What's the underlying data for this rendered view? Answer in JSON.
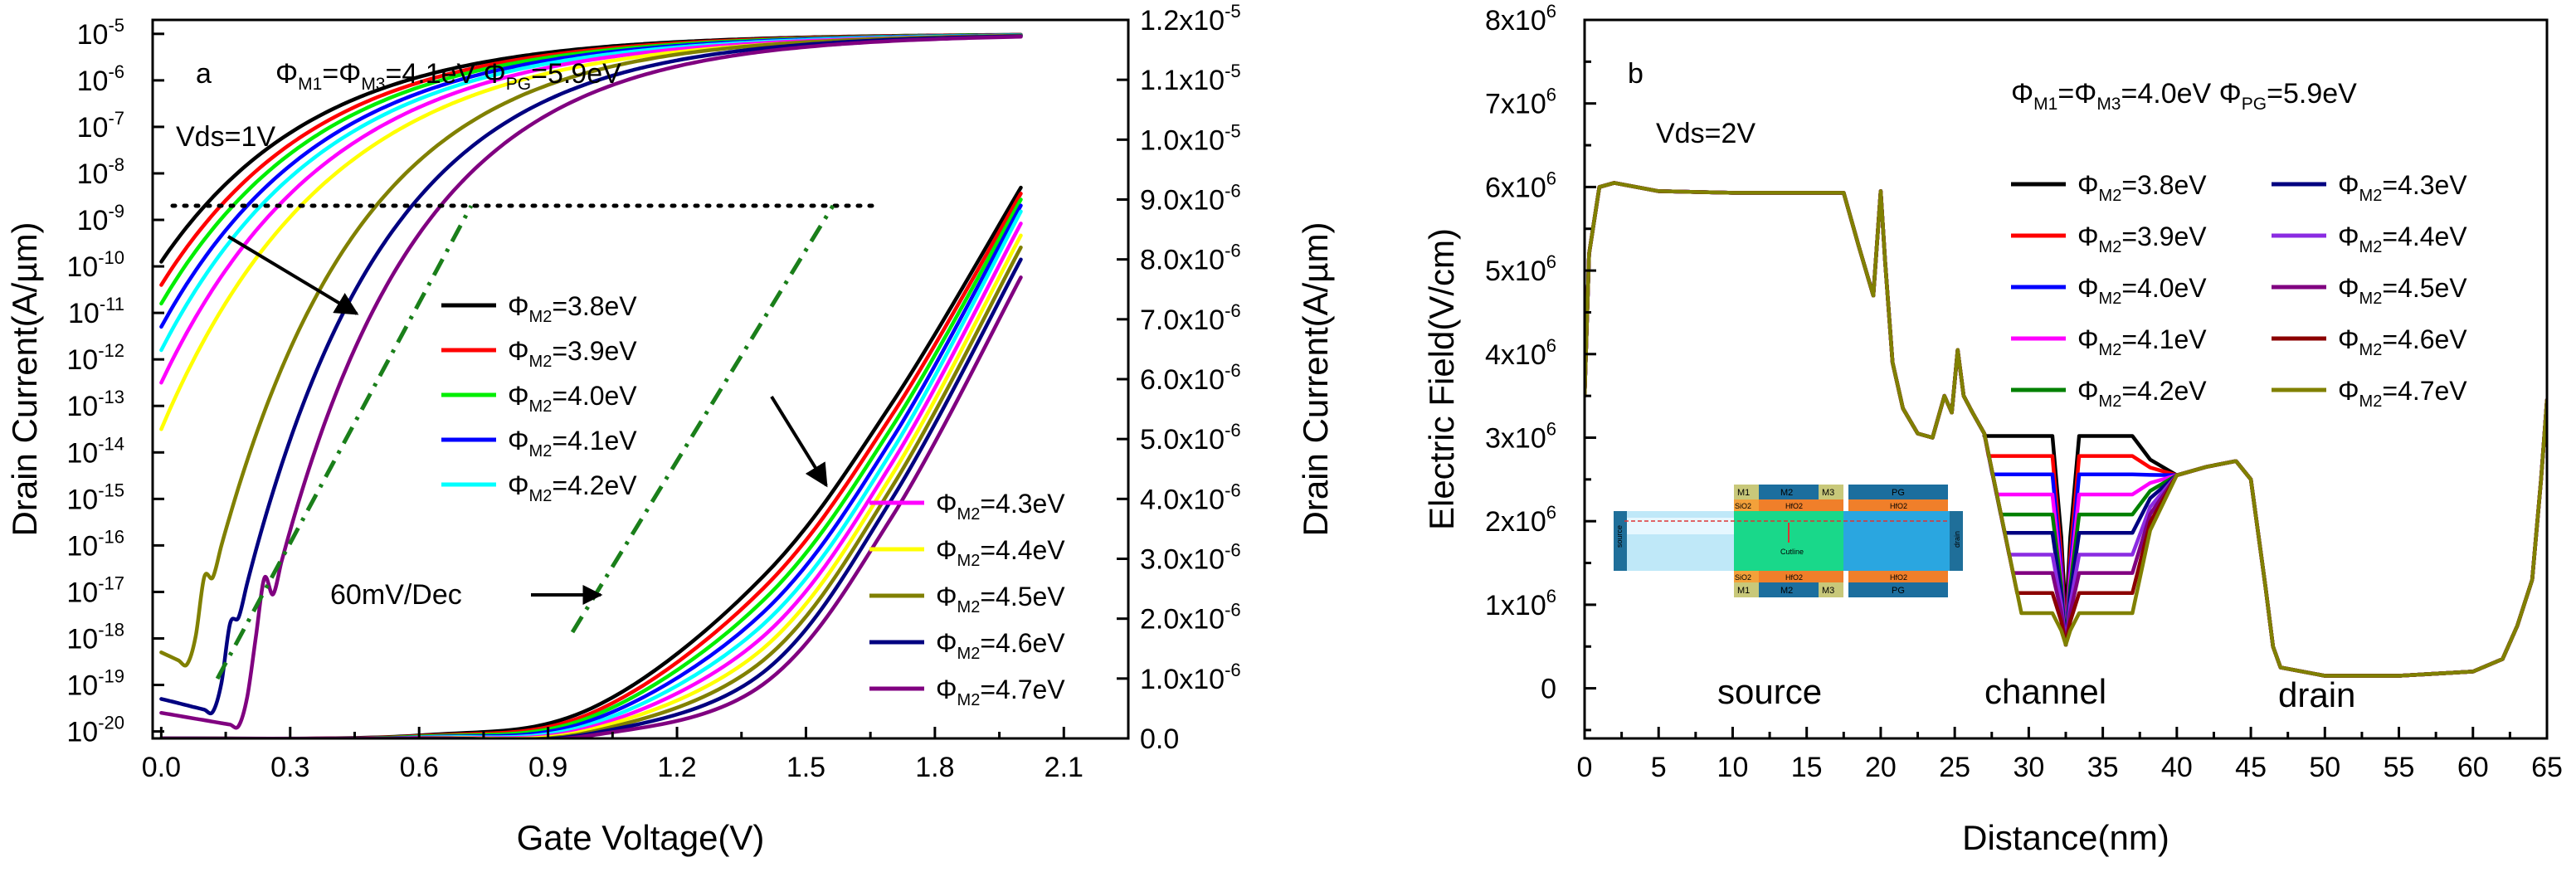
{
  "chart_data": [
    {
      "type": "line",
      "panel": "a",
      "title": "",
      "xlabel": "Gate Voltage(V)",
      "ylabel": "Drain Current(A/µm)",
      "y2label": "Drain Current(A/µm)",
      "xlim": [
        -0.02,
        2.25
      ],
      "xticks": [
        0.0,
        0.3,
        0.6,
        0.9,
        1.2,
        1.5,
        1.8,
        2.1
      ],
      "xticklabels": [
        "0.0",
        "0.3",
        "0.6",
        "0.9",
        "1.2",
        "1.5",
        "1.8",
        "2.1"
      ],
      "ylim_log10": [
        -20.15,
        -4.7
      ],
      "yticks_log10": [
        -20,
        -19,
        -18,
        -17,
        -16,
        -15,
        -14,
        -13,
        -12,
        -11,
        -10,
        -9,
        -8,
        -7,
        -6,
        -5
      ],
      "yticklabels": [
        {
          "base": "10",
          "exp": "-20"
        },
        {
          "base": "10",
          "exp": "-19"
        },
        {
          "base": "10",
          "exp": "-18"
        },
        {
          "base": "10",
          "exp": "-17"
        },
        {
          "base": "10",
          "exp": "-16"
        },
        {
          "base": "10",
          "exp": "-15"
        },
        {
          "base": "10",
          "exp": "-14"
        },
        {
          "base": "10",
          "exp": "-13"
        },
        {
          "base": "10",
          "exp": "-12"
        },
        {
          "base": "10",
          "exp": "-11"
        },
        {
          "base": "10",
          "exp": "-10"
        },
        {
          "base": "10",
          "exp": "-9"
        },
        {
          "base": "10",
          "exp": "-8"
        },
        {
          "base": "10",
          "exp": "-7"
        },
        {
          "base": "10",
          "exp": "-6"
        },
        {
          "base": "10",
          "exp": "-5"
        }
      ],
      "y2lim": [
        0,
        1.2e-05
      ],
      "y2ticks": [
        0,
        1e-06,
        2e-06,
        3e-06,
        4e-06,
        5e-06,
        6e-06,
        7e-06,
        8e-06,
        9e-06,
        1e-05,
        1.1e-05,
        1.2e-05
      ],
      "y2ticklabels": [
        {
          "base": "0.0",
          "exp": ""
        },
        {
          "base": "1.0x10",
          "exp": "-6"
        },
        {
          "base": "2.0x10",
          "exp": "-6"
        },
        {
          "base": "3.0x10",
          "exp": "-6"
        },
        {
          "base": "4.0x10",
          "exp": "-6"
        },
        {
          "base": "5.0x10",
          "exp": "-6"
        },
        {
          "base": "6.0x10",
          "exp": "-6"
        },
        {
          "base": "7.0x10",
          "exp": "-6"
        },
        {
          "base": "8.0x10",
          "exp": "-6"
        },
        {
          "base": "9.0x10",
          "exp": "-6"
        },
        {
          "base": "1.0x10",
          "exp": "-5"
        },
        {
          "base": "1.1x10",
          "exp": "-5"
        },
        {
          "base": "1.2x10",
          "exp": "-5"
        }
      ],
      "annotations": {
        "panel_letter": "a",
        "work_function_main": "Φ",
        "work_function_sub1": "M1",
        "work_function_mid": "=Φ",
        "work_function_sub2": "M3",
        "work_function_val": "=4.1eV  Φ",
        "work_function_sub3": "PG",
        "work_function_end": "=5.9eV",
        "bias": "Vds=1V",
        "slope_label": "60mV/Dec",
        "threshold_current_log10": -8
      },
      "series": [
        {
          "name_sym": "Φ",
          "name_sub": "M2",
          "name_val": "=3.8eV",
          "color": "#000000",
          "phi": 3.8,
          "log_x": [
            0.0,
            2.0
          ],
          "log_y": [
            -9.9,
            -5.0
          ],
          "lin_x": [
            0.0,
            0.6,
            1.0,
            1.4,
            1.7,
            2.0
          ],
          "lin_y": [
            0.0,
            5e-08,
            5e-07,
            2.7e-06,
            5.6e-06,
            9.2e-06
          ]
        },
        {
          "name_sym": "Φ",
          "name_sub": "M2",
          "name_val": "=3.9eV",
          "color": "#ff0000",
          "phi": 3.9,
          "log_x": [
            0.0,
            2.0
          ],
          "log_y": [
            -10.4,
            -5.0
          ],
          "lin_x": [
            0.0,
            0.6,
            1.0,
            1.4,
            1.7,
            2.0
          ],
          "lin_y": [
            0.0,
            4e-08,
            4.2e-07,
            2.5e-06,
            5.4e-06,
            9.1e-06
          ]
        },
        {
          "name_sym": "Φ",
          "name_sub": "M2",
          "name_val": "=4.0eV",
          "color": "#00ee00",
          "phi": 4.0,
          "log_x": [
            0.0,
            2.0
          ],
          "log_y": [
            -10.8,
            -5.0
          ],
          "lin_x": [
            0.0,
            0.6,
            1.0,
            1.4,
            1.7,
            2.0
          ],
          "lin_y": [
            0.0,
            3e-08,
            3.6e-07,
            2.3e-06,
            5.2e-06,
            9e-06
          ]
        },
        {
          "name_sym": "Φ",
          "name_sub": "M2",
          "name_val": "=4.1eV",
          "color": "#0000ff",
          "phi": 4.1,
          "log_x": [
            0.0,
            2.0
          ],
          "log_y": [
            -11.3,
            -5.0
          ],
          "lin_x": [
            0.0,
            0.6,
            1.0,
            1.4,
            1.7,
            2.0
          ],
          "lin_y": [
            0.0,
            2e-08,
            3e-07,
            2.1e-06,
            5e-06,
            8.9e-06
          ]
        },
        {
          "name_sym": "Φ",
          "name_sub": "M2",
          "name_val": "=4.2eV",
          "color": "#00ffff",
          "phi": 4.2,
          "log_x": [
            0.0,
            2.0
          ],
          "log_y": [
            -11.8,
            -5.0
          ],
          "lin_x": [
            0.0,
            0.6,
            1.0,
            1.4,
            1.7,
            2.0
          ],
          "lin_y": [
            0.0,
            1.5e-08,
            2.4e-07,
            1.9e-06,
            4.8e-06,
            8.8e-06
          ]
        },
        {
          "name_sym": "Φ",
          "name_sub": "M2",
          "name_val": "=4.3eV",
          "color": "#ff00ff",
          "phi": 4.3,
          "log_x": [
            0.0,
            2.0
          ],
          "log_y": [
            -12.5,
            -5.0
          ],
          "lin_x": [
            0.0,
            0.6,
            1.0,
            1.4,
            1.7,
            2.0
          ],
          "lin_y": [
            0.0,
            1e-08,
            1.9e-07,
            1.7e-06,
            4.6e-06,
            8.6e-06
          ]
        },
        {
          "name_sym": "Φ",
          "name_sub": "M2",
          "name_val": "=4.4eV",
          "color": "#ffff00",
          "phi": 4.4,
          "log_x": [
            0.0,
            2.0
          ],
          "log_y": [
            -13.5,
            -5.0
          ],
          "lin_x": [
            0.0,
            0.6,
            1.0,
            1.4,
            1.7,
            2.0
          ],
          "lin_y": [
            0.0,
            6e-09,
            1.5e-07,
            1.5e-06,
            4.4e-06,
            8.4e-06
          ]
        },
        {
          "name_sym": "Φ",
          "name_sub": "M2",
          "name_val": "=4.5eV",
          "color": "#808000",
          "phi": 4.5,
          "log_x": [
            0.0,
            2.0
          ],
          "log_y": [
            -18.3,
            -5.0
          ],
          "lin_x": [
            0.0,
            0.6,
            1.0,
            1.4,
            1.7,
            2.0
          ],
          "lin_y": [
            0.0,
            4e-09,
            1.1e-07,
            1.3e-06,
            4.2e-06,
            8.2e-06
          ]
        },
        {
          "name_sym": "Φ",
          "name_sub": "M2",
          "name_val": "=4.6eV",
          "color": "#000080",
          "phi": 4.6,
          "log_x": [
            0.0,
            2.0
          ],
          "log_y": [
            -19.3,
            -5.0
          ],
          "lin_x": [
            0.0,
            0.6,
            1.0,
            1.4,
            1.7,
            2.0
          ],
          "lin_y": [
            0.0,
            2e-09,
            8e-08,
            1.1e-06,
            4e-06,
            8e-06
          ]
        },
        {
          "name_sym": "Φ",
          "name_sub": "M2",
          "name_val": "=4.7eV",
          "color": "#800080",
          "phi": 4.7,
          "log_x": [
            0.0,
            2.0
          ],
          "log_y": [
            -19.6,
            -5.0
          ],
          "lin_x": [
            0.0,
            0.6,
            1.0,
            1.4,
            1.7,
            2.0
          ],
          "lin_y": [
            0.0,
            1e-09,
            5e-08,
            9e-07,
            3.7e-06,
            7.7e-06
          ]
        }
      ]
    },
    {
      "type": "line",
      "panel": "b",
      "title": "",
      "xlabel": "Distance(nm)",
      "ylabel": "Electric Field(V/cm)",
      "xlim": [
        0,
        65
      ],
      "xticks": [
        0,
        5,
        10,
        15,
        20,
        25,
        30,
        35,
        40,
        45,
        50,
        55,
        60,
        65
      ],
      "xticklabels": [
        "0",
        "5",
        "10",
        "15",
        "20",
        "25",
        "30",
        "35",
        "40",
        "45",
        "50",
        "55",
        "60",
        "65"
      ],
      "ylim": [
        -600000,
        8000000
      ],
      "yticks": [
        0,
        1000000,
        2000000,
        3000000,
        4000000,
        5000000,
        6000000,
        7000000,
        8000000
      ],
      "yticklabels": [
        {
          "base": "0",
          "exp": ""
        },
        {
          "base": "1x10",
          "exp": "6"
        },
        {
          "base": "2x10",
          "exp": "6"
        },
        {
          "base": "3x10",
          "exp": "6"
        },
        {
          "base": "4x10",
          "exp": "6"
        },
        {
          "base": "5x10",
          "exp": "6"
        },
        {
          "base": "6x10",
          "exp": "6"
        },
        {
          "base": "7x10",
          "exp": "6"
        },
        {
          "base": "8x10",
          "exp": "6"
        }
      ],
      "annotations": {
        "panel_letter": "b",
        "work_function_main": "Φ",
        "work_function_sub1": "M1",
        "work_function_mid": "=Φ",
        "work_function_sub2": "M3",
        "work_function_val": "=4.0eV  Φ",
        "work_function_sub3": "PG",
        "work_function_end": "=5.9eV",
        "bias": "Vds=2V",
        "region_source": "source",
        "region_channel": "channel",
        "region_drain": "drain"
      },
      "inset_labels": {
        "m1": "M1",
        "m2": "M2",
        "m3": "M3",
        "pg": "PG",
        "sio2": "SiO2",
        "hfo2": "HfO2",
        "cutline": "Cutline",
        "source": "source",
        "drain": "drain"
      },
      "common_profile": {
        "x": [
          0,
          0.3,
          1,
          2,
          5,
          10,
          15,
          17.5,
          18.5,
          19.5,
          20,
          20.3,
          20.8,
          21.5,
          22.5,
          23.5,
          24.3,
          24.8,
          25.2,
          25.6,
          26.2,
          27
        ],
        "y": [
          3500000,
          5200000,
          6000000,
          6050000,
          5950000,
          5930000,
          5930000,
          5930000,
          5300000,
          4700000,
          5950000,
          5100000,
          3900000,
          3350000,
          3050000,
          3000000,
          3500000,
          3300000,
          4050000,
          3500000,
          3300000,
          3050000
        ]
      },
      "drain_profile": {
        "x": [
          40,
          42,
          44,
          45,
          46,
          46.5,
          47,
          50,
          55,
          60,
          62,
          63,
          64,
          64.6,
          65
        ],
        "y": [
          2550000,
          2650000,
          2720000,
          2500000,
          1200000,
          500000,
          250000,
          150000,
          150000,
          200000,
          350000,
          750000,
          1300000,
          2500000,
          3450000
        ]
      },
      "series": [
        {
          "name_sym": "Φ",
          "name_sub": "M2",
          "name_val": "=3.8eV",
          "color": "#000000",
          "plateau": 3020000
        },
        {
          "name_sym": "Φ",
          "name_sub": "M2",
          "name_val": "=3.9eV",
          "color": "#ff0000",
          "plateau": 2780000
        },
        {
          "name_sym": "Φ",
          "name_sub": "M2",
          "name_val": "=4.0eV",
          "color": "#0000ff",
          "plateau": 2560000
        },
        {
          "name_sym": "Φ",
          "name_sub": "M2",
          "name_val": "=4.1eV",
          "color": "#ff00ff",
          "plateau": 2320000
        },
        {
          "name_sym": "Φ",
          "name_sub": "M2",
          "name_val": "=4.2eV",
          "color": "#008000",
          "plateau": 2080000
        },
        {
          "name_sym": "Φ",
          "name_sub": "M2",
          "name_val": "=4.3eV",
          "color": "#000080",
          "plateau": 1860000
        },
        {
          "name_sym": "Φ",
          "name_sub": "M2",
          "name_val": "=4.4eV",
          "color": "#8a2be2",
          "plateau": 1600000
        },
        {
          "name_sym": "Φ",
          "name_sub": "M2",
          "name_val": "=4.5eV",
          "color": "#800080",
          "plateau": 1380000
        },
        {
          "name_sym": "Φ",
          "name_sub": "M2",
          "name_val": "=4.6eV",
          "color": "#8b0000",
          "plateau": 1140000
        },
        {
          "name_sym": "Φ",
          "name_sub": "M2",
          "name_val": "=4.7eV",
          "color": "#808000",
          "plateau": 900000
        }
      ]
    }
  ]
}
